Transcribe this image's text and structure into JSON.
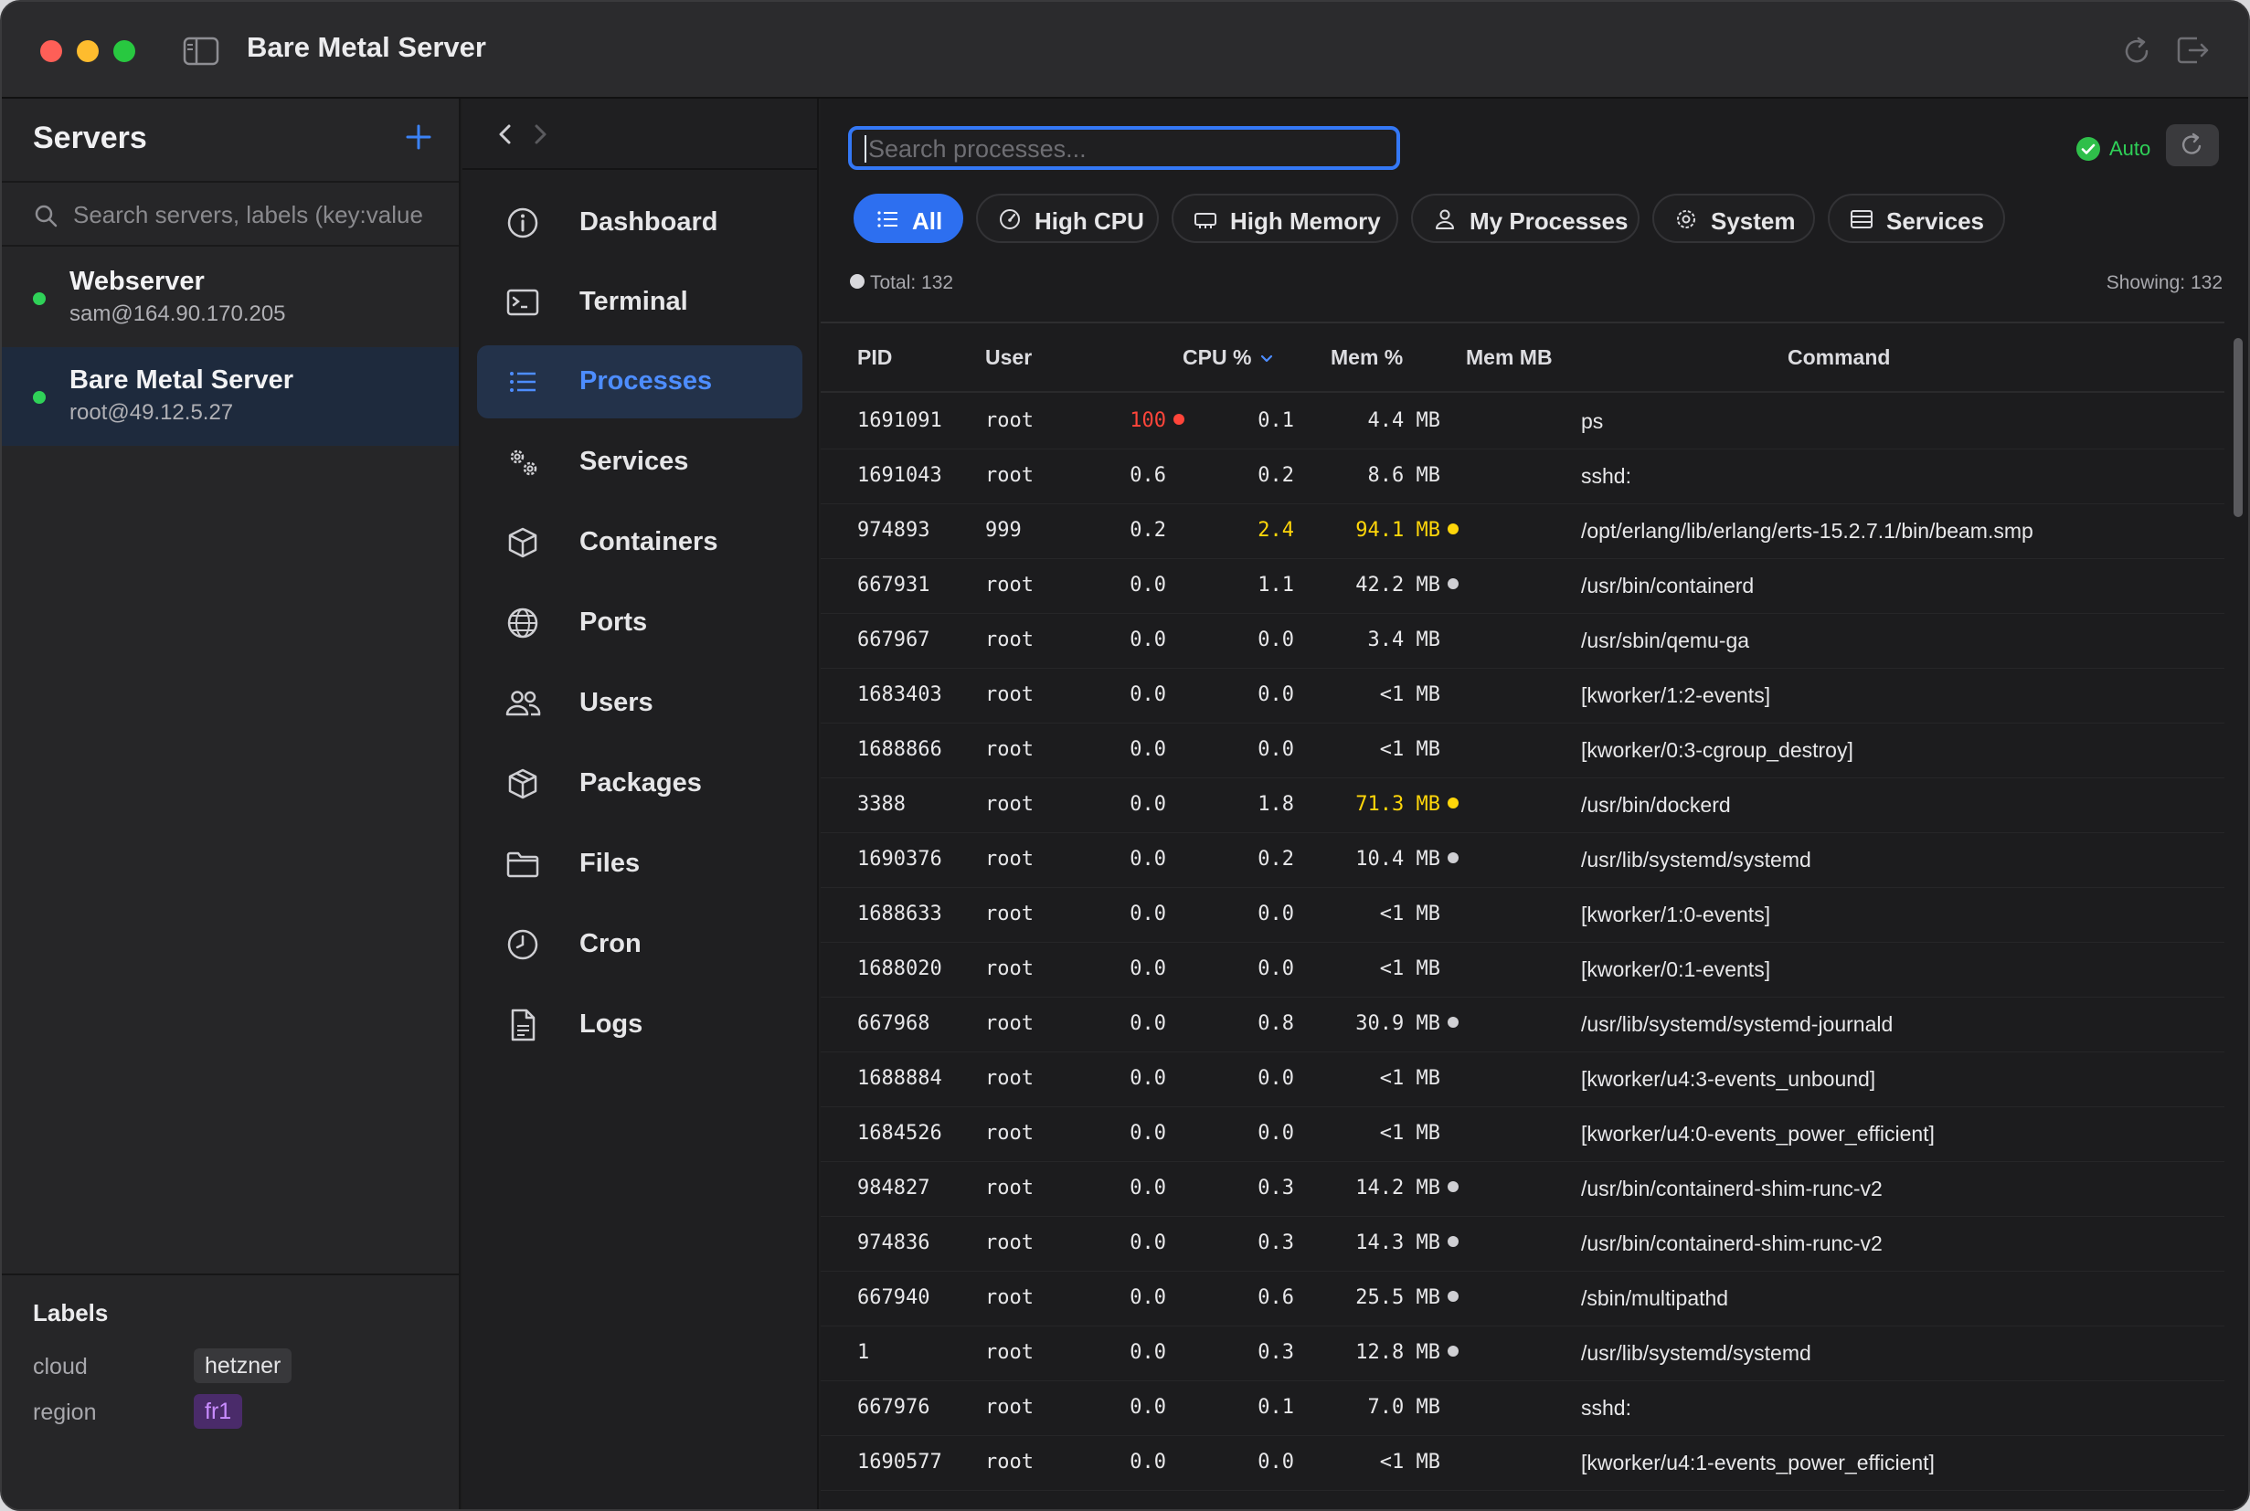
{
  "window": {
    "title": "Bare Metal Server"
  },
  "servers": {
    "header": "Servers",
    "search_placeholder": "Search servers, labels (key:value",
    "items": [
      {
        "name": "Webserver",
        "address": "sam@164.90.170.205",
        "status_color": "#2fd158"
      },
      {
        "name": "Bare Metal Server",
        "address": "root@49.12.5.27",
        "status_color": "#2fd158"
      }
    ]
  },
  "labels": {
    "title": "Labels",
    "items": [
      {
        "key": "cloud",
        "value": "hetzner"
      },
      {
        "key": "region",
        "value": "fr1"
      }
    ]
  },
  "nav": {
    "items": [
      {
        "label": "Dashboard",
        "icon": "info-circle-icon"
      },
      {
        "label": "Terminal",
        "icon": "terminal-icon"
      },
      {
        "label": "Processes",
        "icon": "list-icon"
      },
      {
        "label": "Services",
        "icon": "gears-icon"
      },
      {
        "label": "Containers",
        "icon": "cube-icon"
      },
      {
        "label": "Ports",
        "icon": "globe-icon"
      },
      {
        "label": "Users",
        "icon": "users-icon"
      },
      {
        "label": "Packages",
        "icon": "package-icon"
      },
      {
        "label": "Files",
        "icon": "folder-icon"
      },
      {
        "label": "Cron",
        "icon": "clock-icon"
      },
      {
        "label": "Logs",
        "icon": "document-icon"
      }
    ],
    "active": "Processes"
  },
  "processes": {
    "search_placeholder": "Search processes...",
    "auto_label": "Auto",
    "filters": [
      {
        "label": "All",
        "icon": "list-icon",
        "active": true
      },
      {
        "label": "High CPU",
        "icon": "gauge-icon",
        "active": false
      },
      {
        "label": "High Memory",
        "icon": "memory-chip-icon",
        "active": false
      },
      {
        "label": "My Processes",
        "icon": "person-icon",
        "active": false
      },
      {
        "label": "System",
        "icon": "gear-icon",
        "active": false
      },
      {
        "label": "Services",
        "icon": "server-rack-icon",
        "active": false
      }
    ],
    "total_label": "Total: 132",
    "showing_label": "Showing: 132",
    "columns": {
      "pid": "PID",
      "user": "User",
      "cpu": "CPU %",
      "mem": "Mem %",
      "mem_mb": "Mem MB",
      "command": "Command"
    },
    "colors": {
      "red": "#ff453a",
      "yellow": "#ffd60a",
      "gray": "#d0d0d4"
    },
    "rows": [
      {
        "pid": "1691091",
        "user": "root",
        "cpu": "100",
        "cpu_level": "red",
        "mem": "0.1",
        "mem_level": "",
        "mem_mb": "4.4 MB",
        "mb_level": "",
        "command": "ps"
      },
      {
        "pid": "1691043",
        "user": "root",
        "cpu": "0.6",
        "cpu_level": "",
        "mem": "0.2",
        "mem_level": "",
        "mem_mb": "8.6 MB",
        "mb_level": "",
        "command": "sshd:"
      },
      {
        "pid": "974893",
        "user": "999",
        "cpu": "0.2",
        "cpu_level": "",
        "mem": "2.4",
        "mem_level": "yellow",
        "mem_mb": "94.1 MB",
        "mb_level": "yellow",
        "command": "/opt/erlang/lib/erlang/erts-15.2.7.1/bin/beam.smp"
      },
      {
        "pid": "667931",
        "user": "root",
        "cpu": "0.0",
        "cpu_level": "",
        "mem": "1.1",
        "mem_level": "",
        "mem_mb": "42.2 MB",
        "mb_level": "gray",
        "command": "/usr/bin/containerd"
      },
      {
        "pid": "667967",
        "user": "root",
        "cpu": "0.0",
        "cpu_level": "",
        "mem": "0.0",
        "mem_level": "",
        "mem_mb": "3.4 MB",
        "mb_level": "",
        "command": "/usr/sbin/qemu-ga"
      },
      {
        "pid": "1683403",
        "user": "root",
        "cpu": "0.0",
        "cpu_level": "",
        "mem": "0.0",
        "mem_level": "",
        "mem_mb": "<1 MB",
        "mb_level": "",
        "command": "[kworker/1:2-events]"
      },
      {
        "pid": "1688866",
        "user": "root",
        "cpu": "0.0",
        "cpu_level": "",
        "mem": "0.0",
        "mem_level": "",
        "mem_mb": "<1 MB",
        "mb_level": "",
        "command": "[kworker/0:3-cgroup_destroy]"
      },
      {
        "pid": "3388",
        "user": "root",
        "cpu": "0.0",
        "cpu_level": "",
        "mem": "1.8",
        "mem_level": "",
        "mem_mb": "71.3 MB",
        "mb_level": "yellow",
        "command": "/usr/bin/dockerd"
      },
      {
        "pid": "1690376",
        "user": "root",
        "cpu": "0.0",
        "cpu_level": "",
        "mem": "0.2",
        "mem_level": "",
        "mem_mb": "10.4 MB",
        "mb_level": "gray",
        "command": "/usr/lib/systemd/systemd"
      },
      {
        "pid": "1688633",
        "user": "root",
        "cpu": "0.0",
        "cpu_level": "",
        "mem": "0.0",
        "mem_level": "",
        "mem_mb": "<1 MB",
        "mb_level": "",
        "command": "[kworker/1:0-events]"
      },
      {
        "pid": "1688020",
        "user": "root",
        "cpu": "0.0",
        "cpu_level": "",
        "mem": "0.0",
        "mem_level": "",
        "mem_mb": "<1 MB",
        "mb_level": "",
        "command": "[kworker/0:1-events]"
      },
      {
        "pid": "667968",
        "user": "root",
        "cpu": "0.0",
        "cpu_level": "",
        "mem": "0.8",
        "mem_level": "",
        "mem_mb": "30.9 MB",
        "mb_level": "gray",
        "command": "/usr/lib/systemd/systemd-journald"
      },
      {
        "pid": "1688884",
        "user": "root",
        "cpu": "0.0",
        "cpu_level": "",
        "mem": "0.0",
        "mem_level": "",
        "mem_mb": "<1 MB",
        "mb_level": "",
        "command": "[kworker/u4:3-events_unbound]"
      },
      {
        "pid": "1684526",
        "user": "root",
        "cpu": "0.0",
        "cpu_level": "",
        "mem": "0.0",
        "mem_level": "",
        "mem_mb": "<1 MB",
        "mb_level": "",
        "command": "[kworker/u4:0-events_power_efficient]"
      },
      {
        "pid": "984827",
        "user": "root",
        "cpu": "0.0",
        "cpu_level": "",
        "mem": "0.3",
        "mem_level": "",
        "mem_mb": "14.2 MB",
        "mb_level": "gray",
        "command": "/usr/bin/containerd-shim-runc-v2"
      },
      {
        "pid": "974836",
        "user": "root",
        "cpu": "0.0",
        "cpu_level": "",
        "mem": "0.3",
        "mem_level": "",
        "mem_mb": "14.3 MB",
        "mb_level": "gray",
        "command": "/usr/bin/containerd-shim-runc-v2"
      },
      {
        "pid": "667940",
        "user": "root",
        "cpu": "0.0",
        "cpu_level": "",
        "mem": "0.6",
        "mem_level": "",
        "mem_mb": "25.5 MB",
        "mb_level": "gray",
        "command": "/sbin/multipathd"
      },
      {
        "pid": "1",
        "user": "root",
        "cpu": "0.0",
        "cpu_level": "",
        "mem": "0.3",
        "mem_level": "",
        "mem_mb": "12.8 MB",
        "mb_level": "gray",
        "command": "/usr/lib/systemd/systemd"
      },
      {
        "pid": "667976",
        "user": "root",
        "cpu": "0.0",
        "cpu_level": "",
        "mem": "0.1",
        "mem_level": "",
        "mem_mb": "7.0 MB",
        "mb_level": "",
        "command": "sshd:"
      },
      {
        "pid": "1690577",
        "user": "root",
        "cpu": "0.0",
        "cpu_level": "",
        "mem": "0.0",
        "mem_level": "",
        "mem_mb": "<1 MB",
        "mb_level": "",
        "command": "[kworker/u4:1-events_power_efficient]"
      }
    ]
  }
}
